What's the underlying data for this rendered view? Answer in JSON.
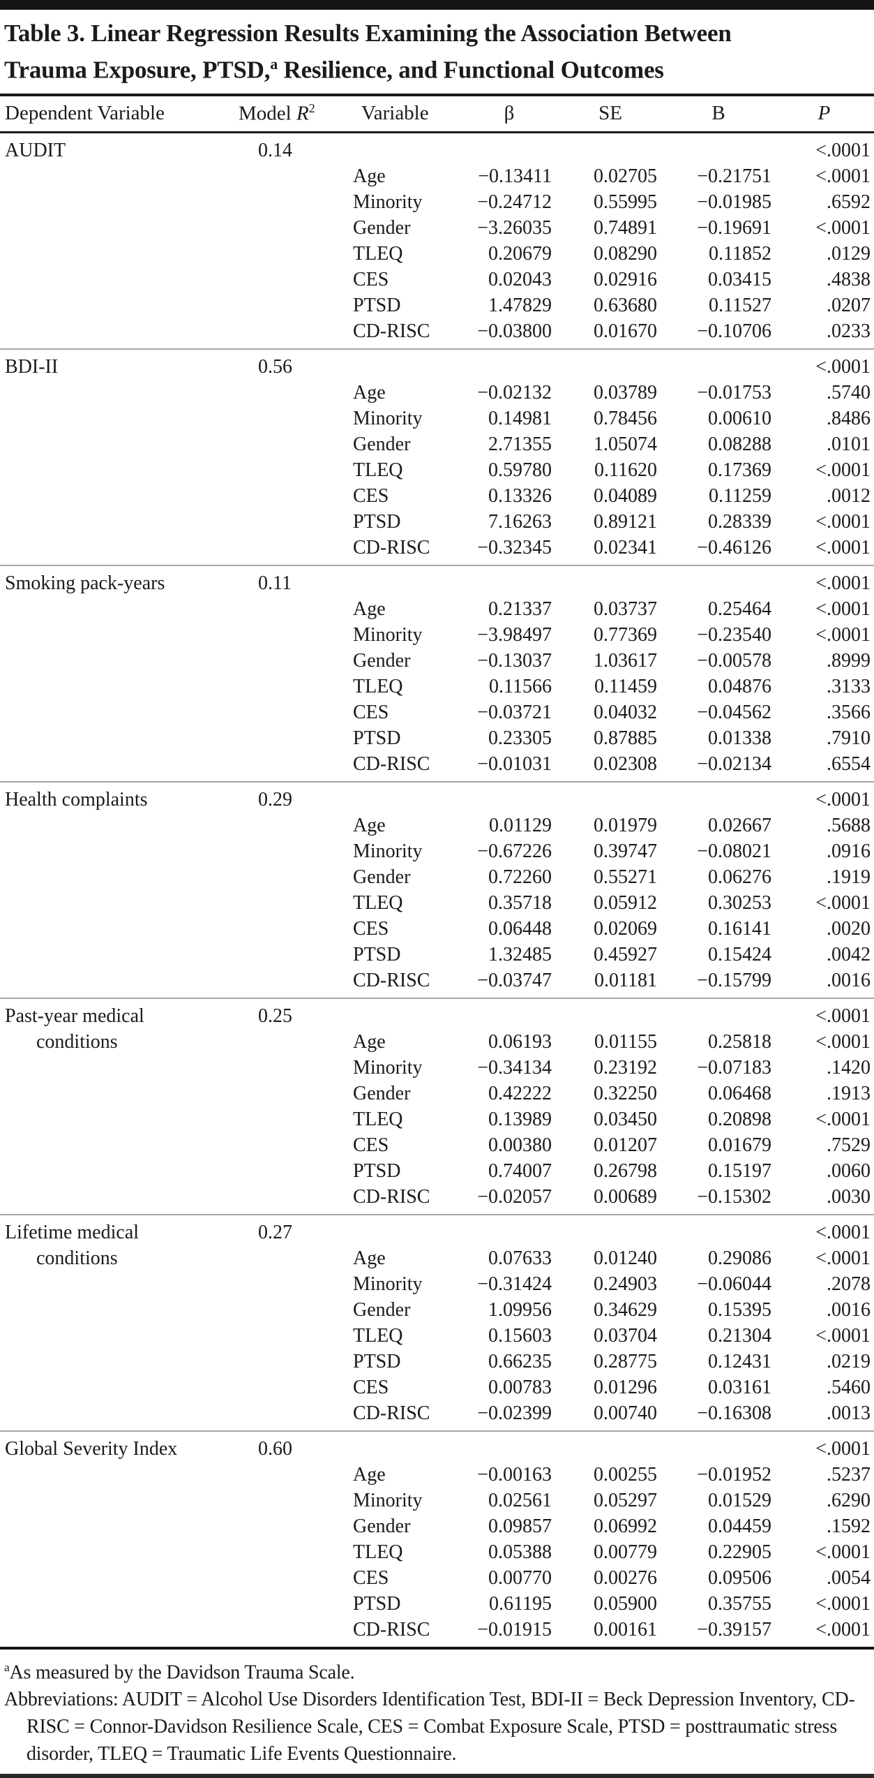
{
  "title": {
    "line1": "Table 3. Linear Regression Results Examining the Association Between",
    "line2_pre": "Trauma Exposure, PTSD,",
    "line2_sup": "a",
    "line2_post": " Resilience, and Functional Outcomes"
  },
  "columns": {
    "dependent_variable": "Dependent Variable",
    "model_prefix": "Model ",
    "model_r": "R",
    "model_sup": "2",
    "variable": "Variable",
    "beta": "β",
    "se": "SE",
    "b": "B",
    "p": "P"
  },
  "sections": [
    {
      "rows": [
        {
          "dep": "AUDIT",
          "r2": "0.14",
          "p": "<.0001"
        },
        {
          "variable": "Age",
          "beta": "−0.13411",
          "se": "0.02705",
          "b": "−0.21751",
          "p": "<.0001"
        },
        {
          "variable": "Minority",
          "beta": "−0.24712",
          "se": "0.55995",
          "b": "−0.01985",
          "p": ".6592"
        },
        {
          "variable": "Gender",
          "beta": "−3.26035",
          "se": "0.74891",
          "b": "−0.19691",
          "p": "<.0001"
        },
        {
          "variable": "TLEQ",
          "beta": "0.20679",
          "se": "0.08290",
          "b": "0.11852",
          "p": ".0129"
        },
        {
          "variable": "CES",
          "beta": "0.02043",
          "se": "0.02916",
          "b": "0.03415",
          "p": ".4838"
        },
        {
          "variable": "PTSD",
          "beta": "1.47829",
          "se": "0.63680",
          "b": "0.11527",
          "p": ".0207"
        },
        {
          "variable": "CD-RISC",
          "beta": "−0.03800",
          "se": "0.01670",
          "b": "−0.10706",
          "p": ".0233"
        }
      ]
    },
    {
      "rows": [
        {
          "dep": "BDI-II",
          "r2": "0.56",
          "p": "<.0001"
        },
        {
          "variable": "Age",
          "beta": "−0.02132",
          "se": "0.03789",
          "b": "−0.01753",
          "p": ".5740"
        },
        {
          "variable": "Minority",
          "beta": "0.14981",
          "se": "0.78456",
          "b": "0.00610",
          "p": ".8486"
        },
        {
          "variable": "Gender",
          "beta": "2.71355",
          "se": "1.05074",
          "b": "0.08288",
          "p": ".0101"
        },
        {
          "variable": "TLEQ",
          "beta": "0.59780",
          "se": "0.11620",
          "b": "0.17369",
          "p": "<.0001"
        },
        {
          "variable": "CES",
          "beta": "0.13326",
          "se": "0.04089",
          "b": "0.11259",
          "p": ".0012"
        },
        {
          "variable": "PTSD",
          "beta": "7.16263",
          "se": "0.89121",
          "b": "0.28339",
          "p": "<.0001"
        },
        {
          "variable": "CD-RISC",
          "beta": "−0.32345",
          "se": "0.02341",
          "b": "−0.46126",
          "p": "<.0001"
        }
      ]
    },
    {
      "rows": [
        {
          "dep": "Smoking pack-years",
          "r2": "0.11",
          "p": "<.0001"
        },
        {
          "variable": "Age",
          "beta": "0.21337",
          "se": "0.03737",
          "b": "0.25464",
          "p": "<.0001"
        },
        {
          "variable": "Minority",
          "beta": "−3.98497",
          "se": "0.77369",
          "b": "−0.23540",
          "p": "<.0001"
        },
        {
          "variable": "Gender",
          "beta": "−0.13037",
          "se": "1.03617",
          "b": "−0.00578",
          "p": ".8999"
        },
        {
          "variable": "TLEQ",
          "beta": "0.11566",
          "se": "0.11459",
          "b": "0.04876",
          "p": ".3133"
        },
        {
          "variable": "CES",
          "beta": "−0.03721",
          "se": "0.04032",
          "b": "−0.04562",
          "p": ".3566"
        },
        {
          "variable": "PTSD",
          "beta": "0.23305",
          "se": "0.87885",
          "b": "0.01338",
          "p": ".7910"
        },
        {
          "variable": "CD-RISC",
          "beta": "−0.01031",
          "se": "0.02308",
          "b": "−0.02134",
          "p": ".6554"
        }
      ]
    },
    {
      "rows": [
        {
          "dep": "Health complaints",
          "r2": "0.29",
          "p": "<.0001"
        },
        {
          "variable": "Age",
          "beta": "0.01129",
          "se": "0.01979",
          "b": "0.02667",
          "p": ".5688"
        },
        {
          "variable": "Minority",
          "beta": "−0.67226",
          "se": "0.39747",
          "b": "−0.08021",
          "p": ".0916"
        },
        {
          "variable": "Gender",
          "beta": "0.72260",
          "se": "0.55271",
          "b": "0.06276",
          "p": ".1919"
        },
        {
          "variable": "TLEQ",
          "beta": "0.35718",
          "se": "0.05912",
          "b": "0.30253",
          "p": "<.0001"
        },
        {
          "variable": "CES",
          "beta": "0.06448",
          "se": "0.02069",
          "b": "0.16141",
          "p": ".0020"
        },
        {
          "variable": "PTSD",
          "beta": "1.32485",
          "se": "0.45927",
          "b": "0.15424",
          "p": ".0042"
        },
        {
          "variable": "CD-RISC",
          "beta": "−0.03747",
          "se": "0.01181",
          "b": "−0.15799",
          "p": ".0016"
        }
      ]
    },
    {
      "rows": [
        {
          "dep": "Past-year medical",
          "r2": "0.25",
          "p": "<.0001"
        },
        {
          "dep": "conditions",
          "dep_indent": true,
          "variable": "Age",
          "beta": "0.06193",
          "se": "0.01155",
          "b": "0.25818",
          "p": "<.0001"
        },
        {
          "variable": "Minority",
          "beta": "−0.34134",
          "se": "0.23192",
          "b": "−0.07183",
          "p": ".1420"
        },
        {
          "variable": "Gender",
          "beta": "0.42222",
          "se": "0.32250",
          "b": "0.06468",
          "p": ".1913"
        },
        {
          "variable": "TLEQ",
          "beta": "0.13989",
          "se": "0.03450",
          "b": "0.20898",
          "p": "<.0001"
        },
        {
          "variable": "CES",
          "beta": "0.00380",
          "se": "0.01207",
          "b": "0.01679",
          "p": ".7529"
        },
        {
          "variable": "PTSD",
          "beta": "0.74007",
          "se": "0.26798",
          "b": "0.15197",
          "p": ".0060"
        },
        {
          "variable": "CD-RISC",
          "beta": "−0.02057",
          "se": "0.00689",
          "b": "−0.15302",
          "p": ".0030"
        }
      ]
    },
    {
      "rows": [
        {
          "dep": "Lifetime medical",
          "r2": "0.27",
          "p": "<.0001"
        },
        {
          "dep": "conditions",
          "dep_indent": true,
          "variable": "Age",
          "beta": "0.07633",
          "se": "0.01240",
          "b": "0.29086",
          "p": "<.0001"
        },
        {
          "variable": "Minority",
          "beta": "−0.31424",
          "se": "0.24903",
          "b": "−0.06044",
          "p": ".2078"
        },
        {
          "variable": "Gender",
          "beta": "1.09956",
          "se": "0.34629",
          "b": "0.15395",
          "p": ".0016"
        },
        {
          "variable": "TLEQ",
          "beta": "0.15603",
          "se": "0.03704",
          "b": "0.21304",
          "p": "<.0001"
        },
        {
          "variable": "PTSD",
          "beta": "0.66235",
          "se": "0.28775",
          "b": "0.12431",
          "p": ".0219"
        },
        {
          "variable": "CES",
          "beta": "0.00783",
          "se": "0.01296",
          "b": "0.03161",
          "p": ".5460"
        },
        {
          "variable": "CD-RISC",
          "beta": "−0.02399",
          "se": "0.00740",
          "b": "−0.16308",
          "p": ".0013"
        }
      ]
    },
    {
      "rows": [
        {
          "dep": "Global Severity Index",
          "r2": "0.60",
          "p": "<.0001"
        },
        {
          "variable": "Age",
          "beta": "−0.00163",
          "se": "0.00255",
          "b": "−0.01952",
          "p": ".5237"
        },
        {
          "variable": "Minority",
          "beta": "0.02561",
          "se": "0.05297",
          "b": "0.01529",
          "p": ".6290"
        },
        {
          "variable": "Gender",
          "beta": "0.09857",
          "se": "0.06992",
          "b": "0.04459",
          "p": ".1592"
        },
        {
          "variable": "TLEQ",
          "beta": "0.05388",
          "se": "0.00779",
          "b": "0.22905",
          "p": "<.0001"
        },
        {
          "variable": "CES",
          "beta": "0.00770",
          "se": "0.00276",
          "b": "0.09506",
          "p": ".0054"
        },
        {
          "variable": "PTSD",
          "beta": "0.61195",
          "se": "0.05900",
          "b": "0.35755",
          "p": "<.0001"
        },
        {
          "variable": "CD-RISC",
          "beta": "−0.01915",
          "se": "0.00161",
          "b": "−0.39157",
          "p": "<.0001"
        }
      ]
    }
  ],
  "footnotes": {
    "marker": "a",
    "note1": "As measured by the Davidson Trauma Scale.",
    "abbreviations": "Abbreviations: AUDIT = Alcohol Use Disorders Identification Test, BDI-II = Beck Depression Inventory, CD-RISC = Connor-Davidson Resilience Scale, CES = Combat Exposure Scale, PTSD = posttraumatic stress disorder, TLEQ = Traumatic Life Events Questionnaire."
  }
}
